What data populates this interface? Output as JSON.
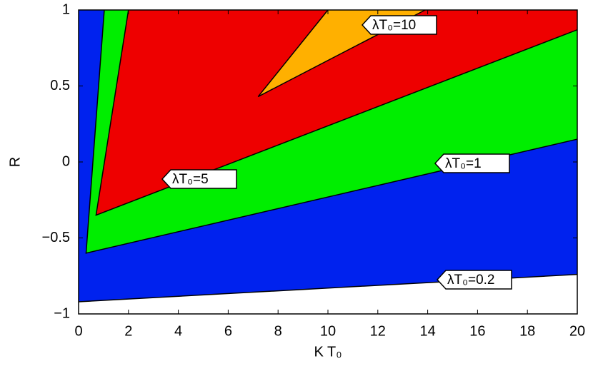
{
  "chart_data": {
    "type": "contour",
    "xlabel": "K T₀",
    "ylabel": "R",
    "xlim": [
      0,
      20
    ],
    "ylim": [
      -1,
      1
    ],
    "xticks": [
      0,
      2,
      4,
      6,
      8,
      10,
      12,
      14,
      16,
      18,
      20
    ],
    "yticks": [
      {
        "value": -1,
        "label": "−1"
      },
      {
        "value": -0.5,
        "label": "−0.5"
      },
      0,
      0.5,
      1
    ],
    "series": [
      {
        "name": "λT₀=0.2",
        "color": "#0022ee",
        "x": [
          0,
          20
        ],
        "values": [
          -0.92,
          -0.74
        ]
      },
      {
        "name": "λT₀=1",
        "color": "#00ee00",
        "x": [
          1.03,
          0.3,
          20
        ],
        "values": [
          1,
          -0.6,
          0.15
        ]
      },
      {
        "name": "λT₀=5",
        "color": "#ee0000",
        "x": [
          2.0,
          0.7,
          20
        ],
        "values": [
          1,
          -0.35,
          0.87
        ]
      },
      {
        "name": "λT₀=10",
        "color": "#ffb000",
        "x": [
          10.0,
          7.2,
          13.9
        ],
        "values": [
          1,
          0.43,
          1
        ]
      }
    ]
  }
}
